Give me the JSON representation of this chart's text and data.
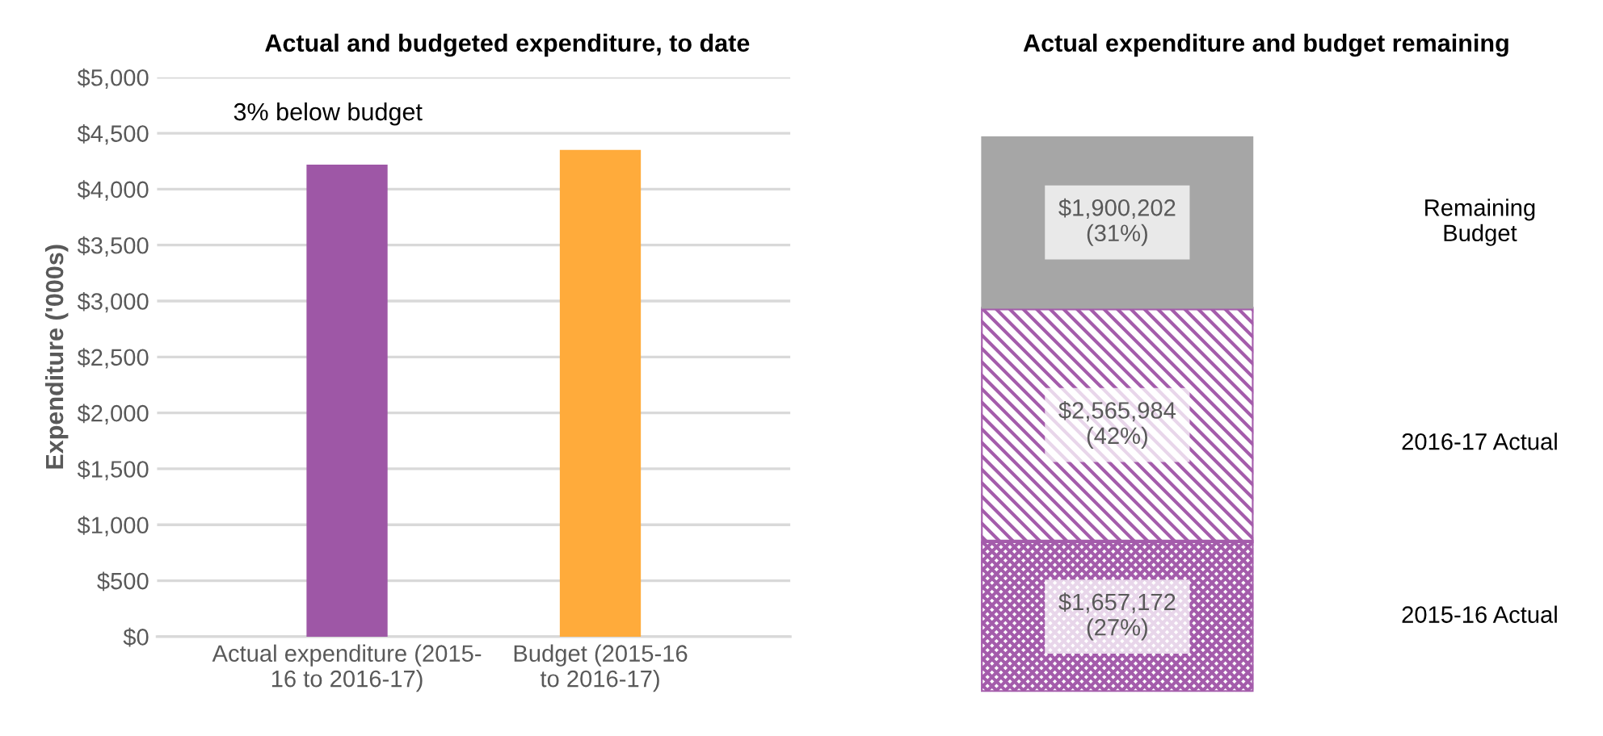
{
  "chart_data": [
    {
      "type": "bar",
      "title": "Actual and budgeted expenditure, to date",
      "ylabel": "Expenditure ('000s)",
      "categories": [
        "Actual expenditure (2015-\n16 to 2016-17)",
        "Budget (2015-16\nto 2016-17)"
      ],
      "values": [
        4220,
        4350
      ],
      "colors": [
        "#9e57a6",
        "#ffab3b"
      ],
      "ylim": [
        0,
        5000
      ],
      "yticks": [
        {
          "value": 0,
          "label": "$0"
        },
        {
          "value": 500,
          "label": "$500"
        },
        {
          "value": 1000,
          "label": "$1,000"
        },
        {
          "value": 1500,
          "label": "$1,500"
        },
        {
          "value": 2000,
          "label": "$2,000"
        },
        {
          "value": 2500,
          "label": "$2,500"
        },
        {
          "value": 3000,
          "label": "$3,000"
        },
        {
          "value": 3500,
          "label": "$3,500"
        },
        {
          "value": 4000,
          "label": "$4,000"
        },
        {
          "value": 4500,
          "label": "$4,500"
        },
        {
          "value": 5000,
          "label": "$5,000"
        }
      ],
      "grid": "y",
      "annotations": [
        "3% below budget"
      ]
    },
    {
      "type": "bar",
      "title": "Actual expenditure and budget remaining",
      "stacked": true,
      "categories": [
        null
      ],
      "series": [
        {
          "name": "2015-16 Actual",
          "color": "#a45cab",
          "values": [
            1657172
          ],
          "value_labels": [
            "$1,657,172\n(27%)"
          ]
        },
        {
          "name": "2016-17 Actual",
          "color": "#a45cab",
          "values": [
            2565984
          ],
          "value_labels": [
            "$2,565,984\n(42%)"
          ]
        },
        {
          "name": "Remaining Budget",
          "color": "#a6a6a6",
          "values": [
            1900202
          ],
          "value_labels": [
            "$1,900,202\n(31%)"
          ]
        }
      ]
    }
  ]
}
